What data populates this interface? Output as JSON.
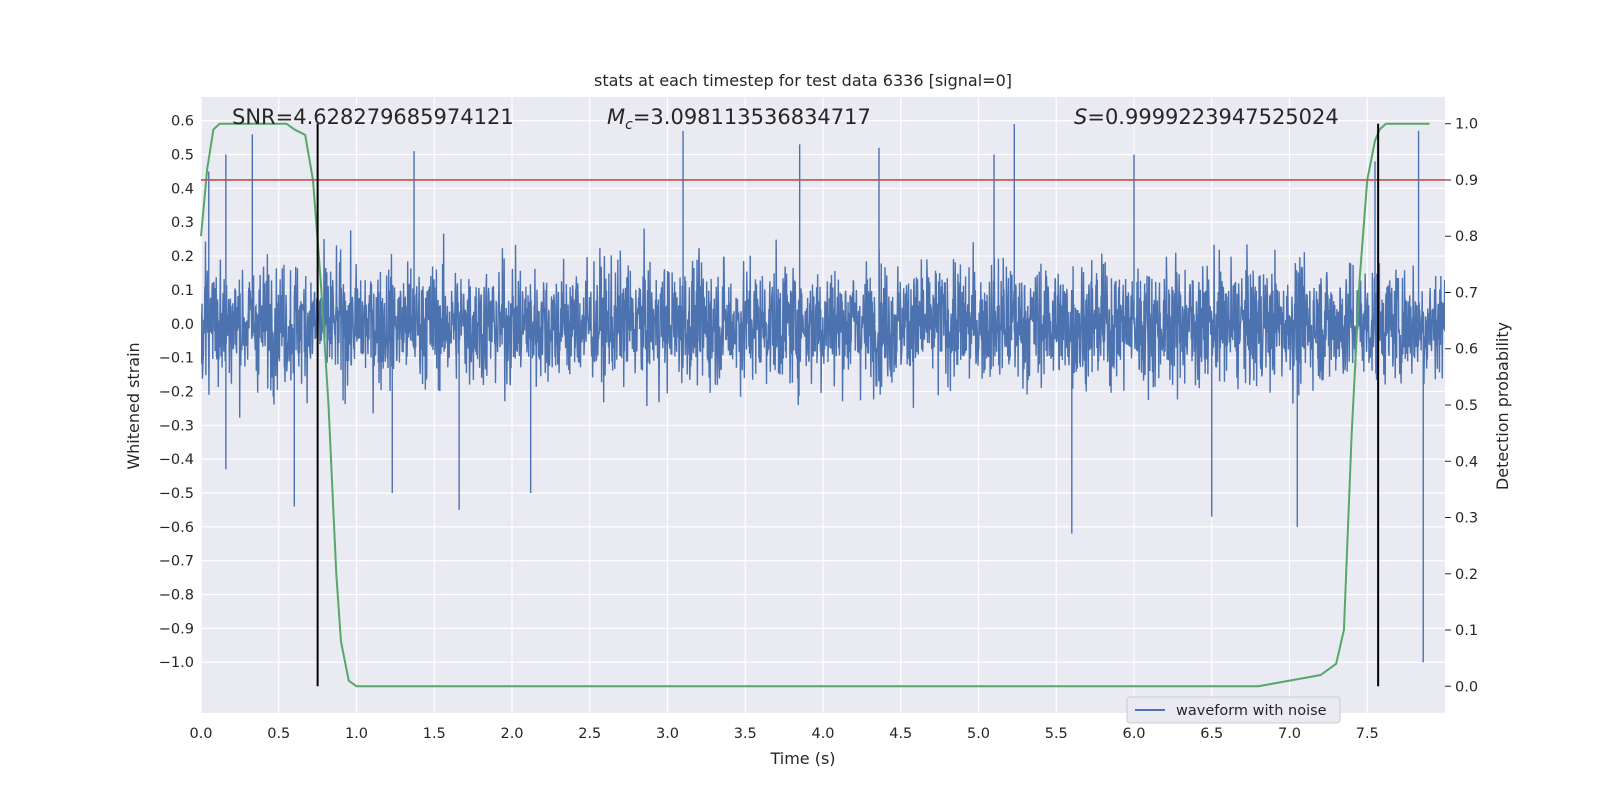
{
  "chart_data": {
    "type": "line",
    "title": "stats at each timestep for test data 6336 [signal=0]",
    "xlabel": "Time (s)",
    "ylabel": "Whitened strain",
    "y2label": "Detection probability",
    "xlim": [
      0.0,
      8.0
    ],
    "ylim": [
      -1.15,
      0.67
    ],
    "y2lim": [
      -0.0475,
      1.0475
    ],
    "x_ticks": [
      "0.0",
      "0.5",
      "1.0",
      "1.5",
      "2.0",
      "2.5",
      "3.0",
      "3.5",
      "4.0",
      "4.5",
      "5.0",
      "5.5",
      "6.0",
      "6.5",
      "7.0",
      "7.5"
    ],
    "y_ticks": [
      "0.6",
      "0.5",
      "0.4",
      "0.3",
      "0.2",
      "0.1",
      "0.0",
      "−0.1",
      "−0.2",
      "−0.3",
      "−0.4",
      "−0.5",
      "−0.6",
      "−0.7",
      "−0.8",
      "−0.9",
      "−1.0"
    ],
    "y2_ticks": [
      "1.0",
      "0.9",
      "0.8",
      "0.7",
      "0.6",
      "0.5",
      "0.4",
      "0.3",
      "0.2",
      "0.1",
      "0.0"
    ],
    "grid": true,
    "legend_position": "lower-right",
    "annotations": {
      "snr": "SNR=4.628279685974121",
      "mc_base": "M",
      "mc_sub": "c",
      "mc_value": "=3.098113536834717",
      "s_symbol": "S",
      "s_value": "=0.9999223947525024"
    },
    "threshold": {
      "value": 0.9,
      "axis": "right",
      "color": "#c44e52"
    },
    "vertical_markers": [
      0.75,
      7.57
    ],
    "series": [
      {
        "name": "waveform with noise",
        "color": "#4c72b0",
        "description": "dense noise trace",
        "envelope": {
          "x_start": 0.0,
          "x_end": 8.0,
          "typical_amplitude": 0.27
        },
        "peaks": [
          [
            0.05,
            0.45
          ],
          [
            0.16,
            0.49
          ],
          [
            0.16,
            -0.43
          ],
          [
            0.6,
            -0.54
          ],
          [
            0.16,
            0.5
          ],
          [
            0.33,
            0.56
          ],
          [
            0.6,
            -0.53
          ],
          [
            1.66,
            -0.55
          ],
          [
            1.23,
            -0.5
          ],
          [
            1.37,
            0.51
          ],
          [
            2.12,
            -0.5
          ],
          [
            3.1,
            0.57
          ],
          [
            3.85,
            0.53
          ],
          [
            4.36,
            0.52
          ],
          [
            5.1,
            0.5
          ],
          [
            5.23,
            0.59
          ],
          [
            5.6,
            -0.62
          ],
          [
            6.0,
            0.5
          ],
          [
            6.5,
            -0.57
          ],
          [
            7.05,
            -0.6
          ],
          [
            7.55,
            0.48
          ],
          [
            7.83,
            0.57
          ],
          [
            7.86,
            -1.0
          ]
        ]
      },
      {
        "name": "detection probability",
        "color": "#55a868",
        "axis": "right",
        "x": [
          0.0,
          0.04,
          0.08,
          0.12,
          0.2,
          0.3,
          0.4,
          0.5,
          0.55,
          0.6,
          0.67,
          0.72,
          0.77,
          0.82,
          0.87,
          0.9,
          0.95,
          1.0,
          1.1,
          1.3,
          1.5,
          1.8,
          2.0,
          2.15,
          2.3,
          2.6,
          3.0,
          3.2,
          3.5,
          3.7,
          3.9,
          4.1,
          4.3,
          4.6,
          4.8,
          5.0,
          5.2,
          5.5,
          5.8,
          6.0,
          6.1,
          6.2,
          6.3,
          6.5,
          6.8,
          7.0,
          7.1,
          7.2,
          7.25,
          7.3,
          7.35,
          7.4,
          7.45,
          7.5,
          7.55,
          7.58,
          7.62,
          7.68,
          7.75,
          7.85,
          7.9
        ],
        "y": [
          0.8,
          0.92,
          0.99,
          1.0,
          1.0,
          1.0,
          1.0,
          1.0,
          1.0,
          0.99,
          0.98,
          0.9,
          0.72,
          0.5,
          0.2,
          0.08,
          0.01,
          0.0,
          0.0,
          0.0,
          0.0,
          0.0,
          0.0,
          0.0,
          0.0,
          0.0,
          0.0,
          0.0,
          0.0,
          0.0,
          0.0,
          0.0,
          0.0,
          0.0,
          0.0,
          0.0,
          0.0,
          0.0,
          0.0,
          0.0,
          0.0,
          0.0,
          0.0,
          0.0,
          0.0,
          0.01,
          0.015,
          0.02,
          0.03,
          0.04,
          0.1,
          0.45,
          0.72,
          0.9,
          0.97,
          0.99,
          1.0,
          1.0,
          1.0,
          1.0,
          1.0
        ]
      }
    ]
  }
}
